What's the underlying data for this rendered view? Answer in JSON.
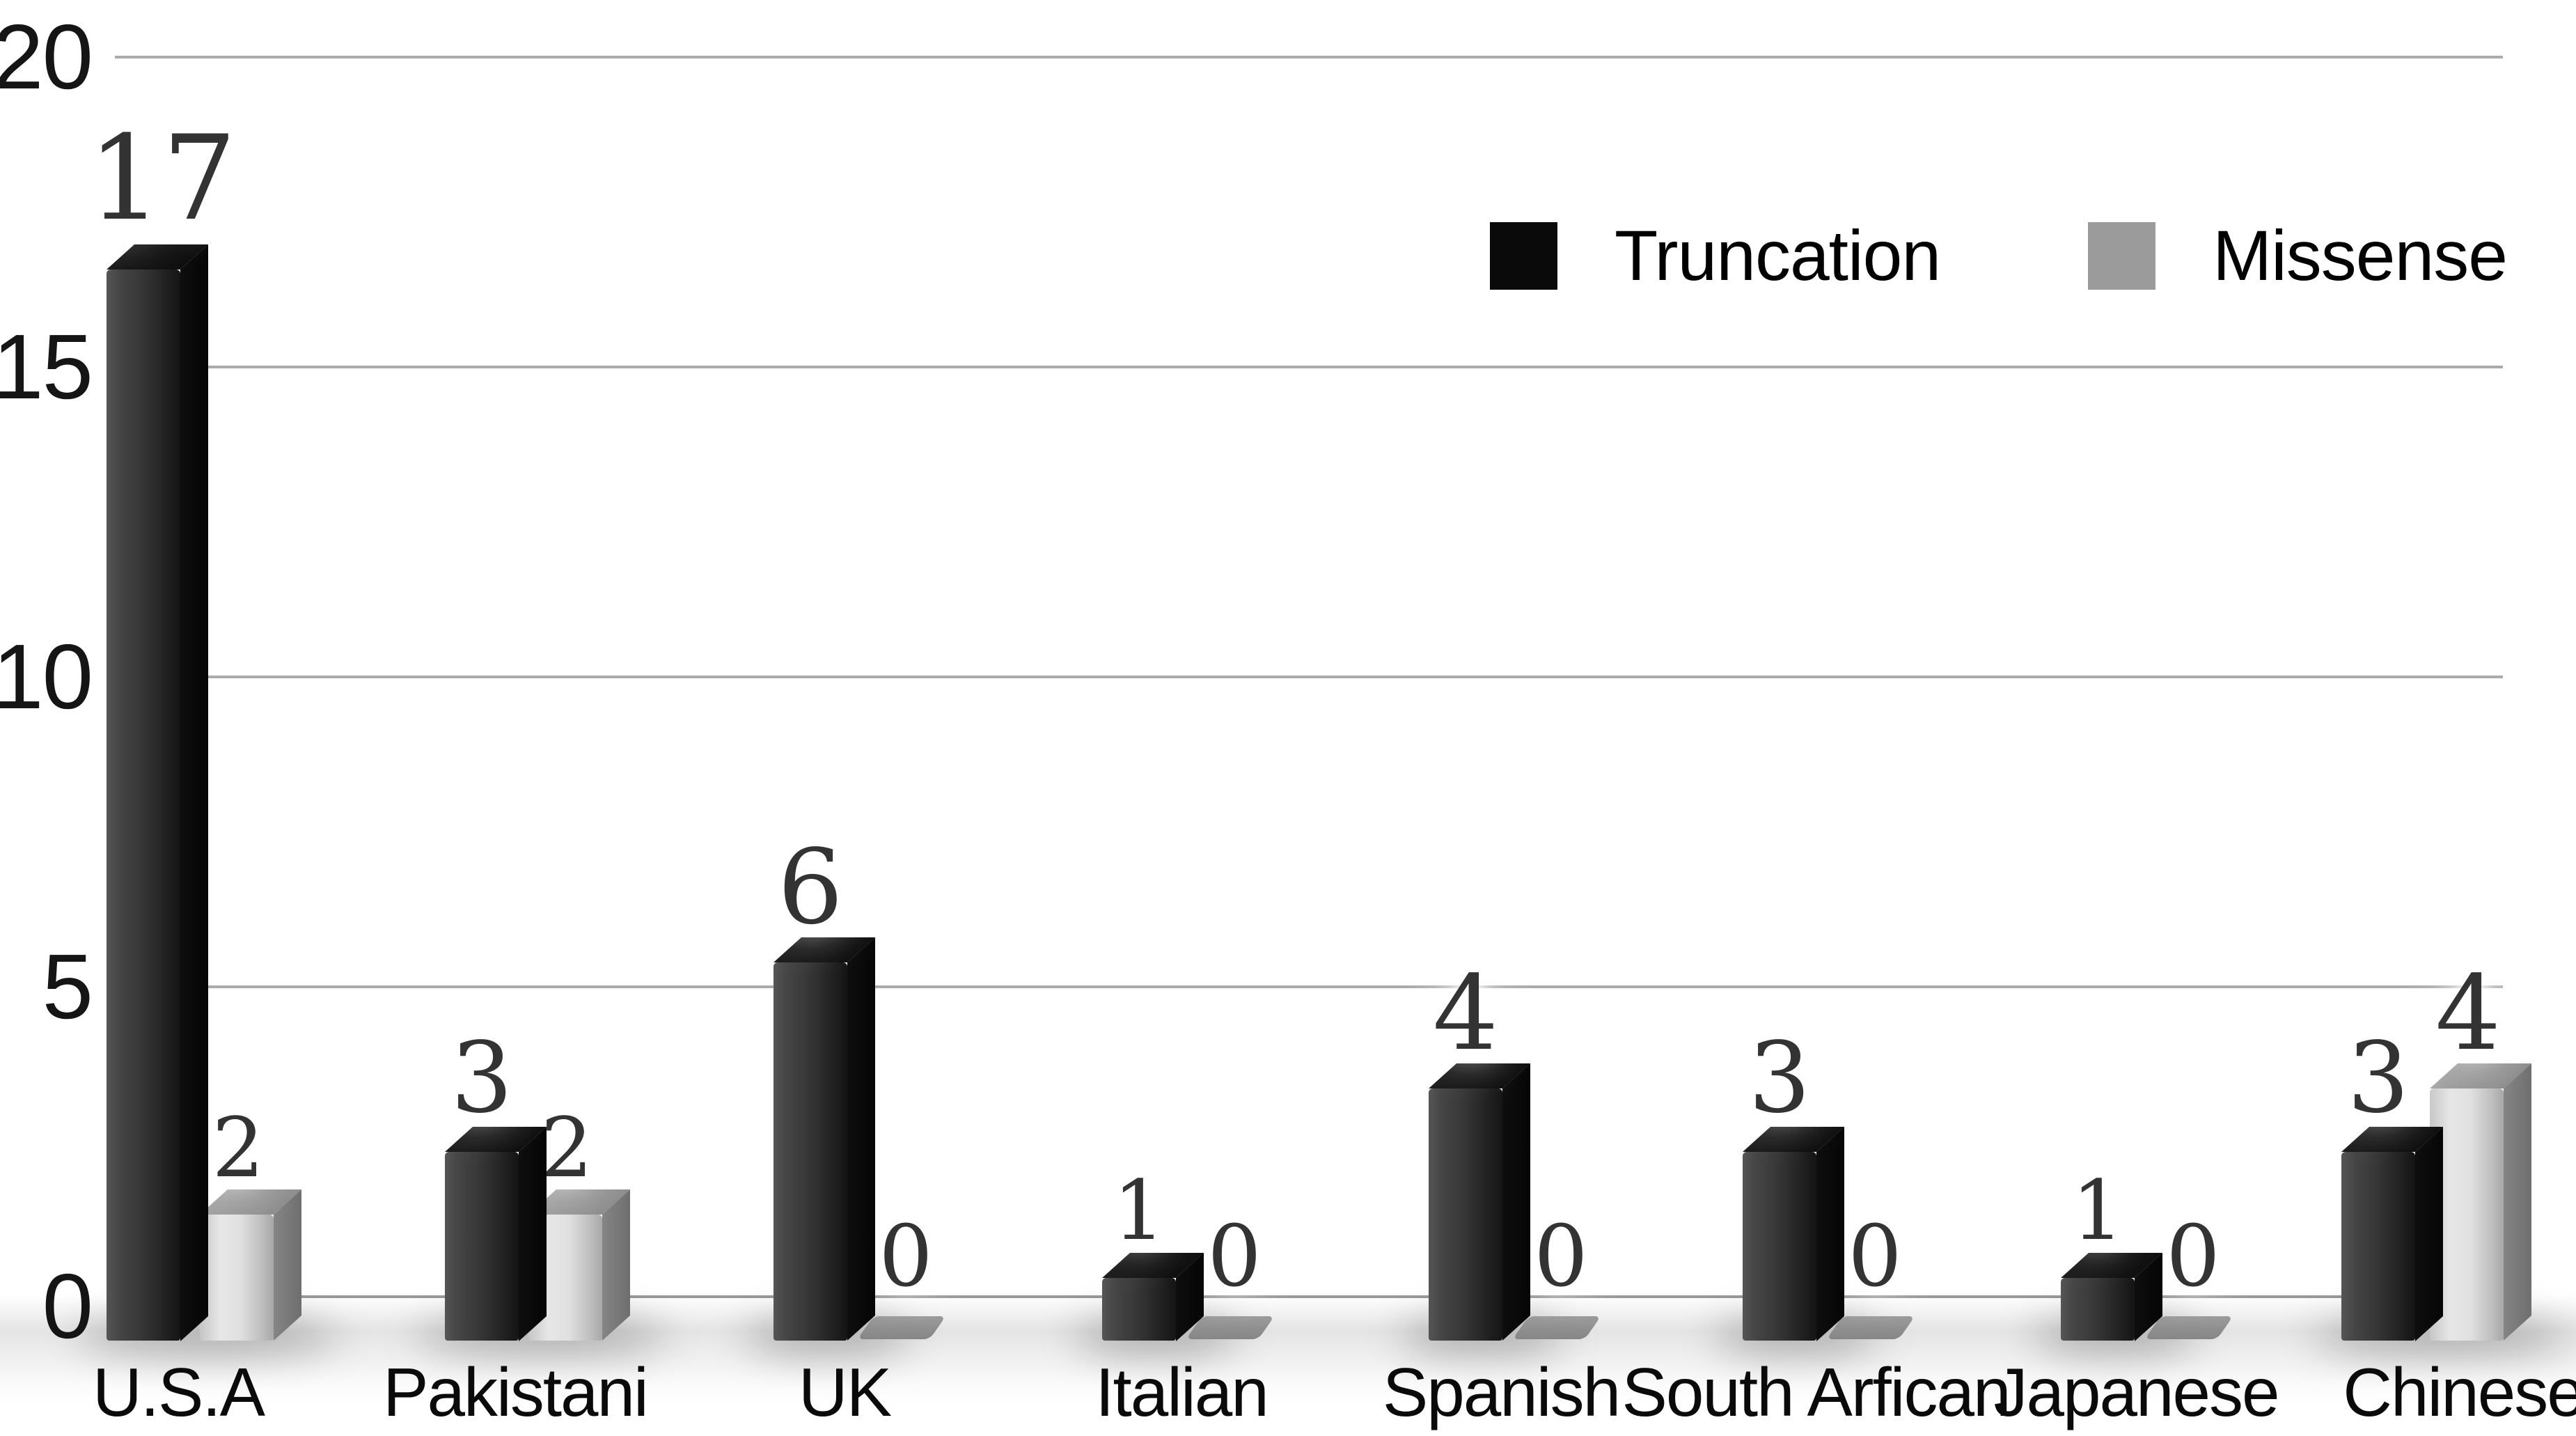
{
  "chart_data": {
    "type": "bar",
    "title": "",
    "xlabel": "",
    "ylabel": "",
    "categories": [
      "U.S.A",
      "Pakistani",
      "UK",
      "Italian",
      "Spanish",
      "South Arfican",
      "Japanese",
      "Chinese"
    ],
    "series": [
      {
        "name": "Truncation",
        "color": "#111111",
        "values": [
          17,
          3,
          6,
          1,
          4,
          3,
          1,
          3
        ]
      },
      {
        "name": "Missense",
        "color": "#9a9a9a",
        "values": [
          2,
          2,
          0,
          0,
          0,
          0,
          0,
          4
        ]
      }
    ],
    "ylim": [
      0,
      20
    ],
    "yticks": [
      0,
      5,
      10,
      15,
      20
    ],
    "ytick_labels": [
      "0",
      "5",
      "10",
      "15",
      "20"
    ],
    "grid": true,
    "legend_position": "top-right",
    "bar_style": "3d-grayscale",
    "value_labels_shown": true
  },
  "legend": {
    "items": [
      {
        "label": "Truncation",
        "swatch_color": "#0a0a0a"
      },
      {
        "label": "Missense",
        "swatch_color": "#9b9b9b"
      }
    ]
  },
  "colors": {
    "background": "#ffffff",
    "gridline": "#ababab",
    "axis_label": "#151515",
    "value_label": "#333333",
    "truncation_front": "#383838",
    "missense_front": "#d9d9d9"
  }
}
